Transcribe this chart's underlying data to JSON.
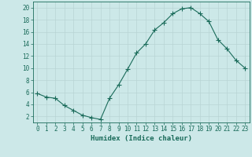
{
  "x": [
    0,
    1,
    2,
    3,
    4,
    5,
    6,
    7,
    8,
    9,
    10,
    11,
    12,
    13,
    14,
    15,
    16,
    17,
    18,
    19,
    20,
    21,
    22,
    23
  ],
  "y": [
    5.8,
    5.2,
    5.0,
    3.8,
    3.0,
    2.2,
    1.8,
    1.5,
    5.0,
    7.2,
    9.8,
    12.5,
    14.0,
    16.3,
    17.5,
    19.0,
    19.8,
    20.0,
    19.0,
    17.7,
    14.7,
    13.2,
    11.3,
    10.0
  ],
  "line_color": "#1a6b5a",
  "marker": "+",
  "marker_size": 4,
  "bg_color": "#cce8e8",
  "grid_color": "#b8d4d4",
  "xlabel": "Humidex (Indice chaleur)",
  "ylabel_ticks": [
    2,
    4,
    6,
    8,
    10,
    12,
    14,
    16,
    18,
    20
  ],
  "xlim": [
    -0.5,
    23.5
  ],
  "ylim": [
    1.0,
    21.0
  ],
  "tick_color": "#1a6b5a",
  "label_fontsize": 6.5,
  "tick_fontsize": 5.5
}
